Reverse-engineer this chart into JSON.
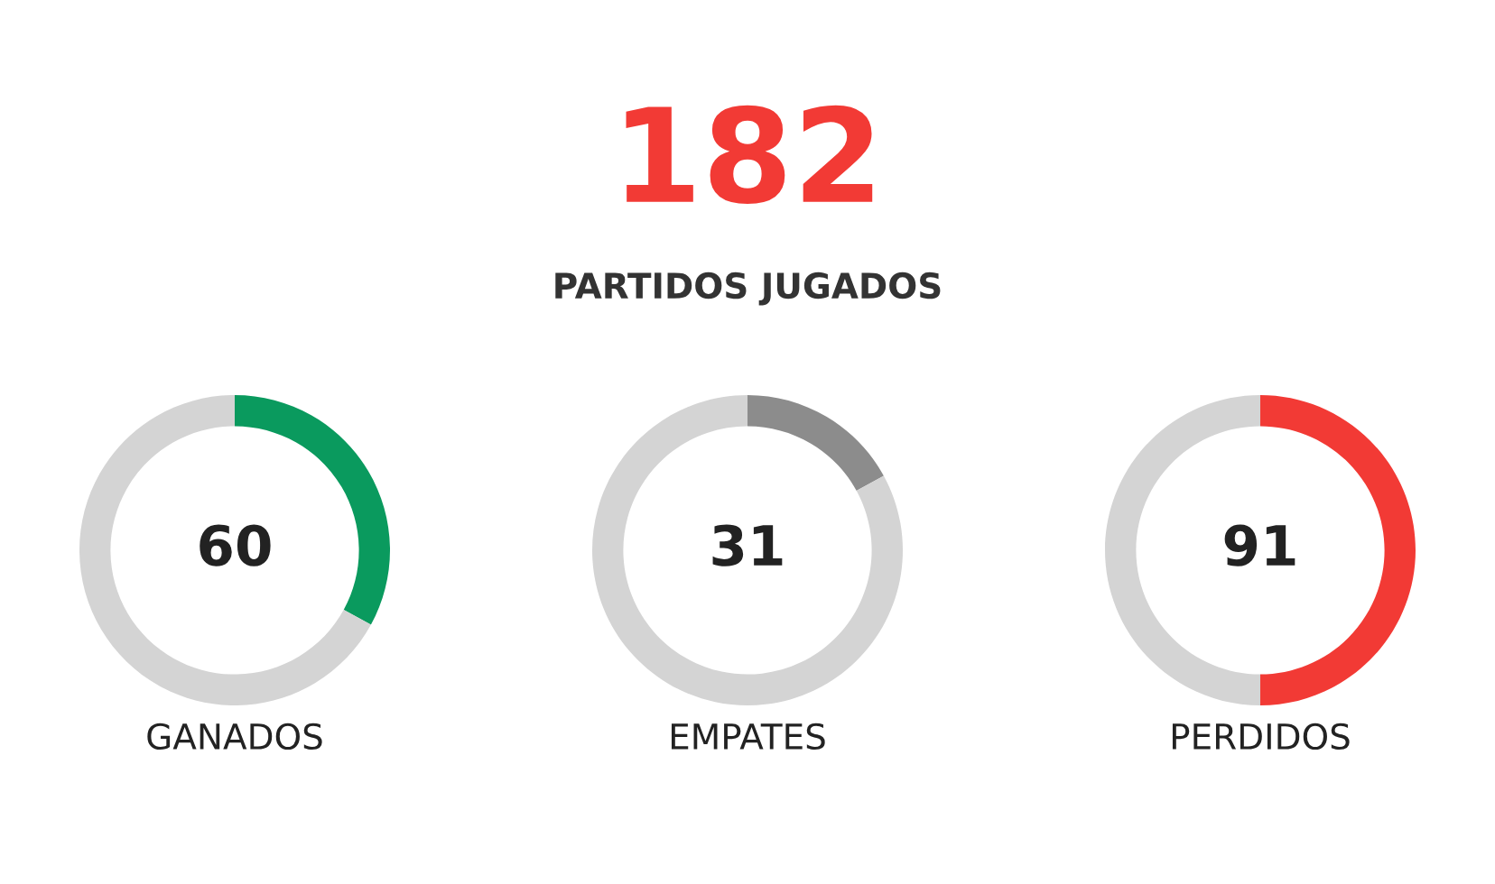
{
  "chart_data": [
    {
      "type": "other",
      "title": "182",
      "subtitle": "PARTIDOS JUGADOS",
      "color": "#f23a35"
    },
    {
      "type": "donut",
      "title": "GANADOS",
      "categories": [
        null,
        null
      ],
      "values": [
        60,
        122
      ],
      "colors": [
        "#0a9a5e",
        "#d4d4d4"
      ],
      "value_labels": [
        "60",
        null
      ]
    },
    {
      "type": "donut",
      "title": "EMPATES",
      "categories": [
        null,
        null
      ],
      "values": [
        31,
        151
      ],
      "colors": [
        "#8c8c8c",
        "#d4d4d4"
      ],
      "value_labels": [
        "31",
        null
      ]
    },
    {
      "type": "donut",
      "title": "PERDIDOS",
      "categories": [
        null,
        null
      ],
      "values": [
        91,
        91
      ],
      "colors": [
        "#f23a35",
        "#d4d4d4"
      ],
      "value_labels": [
        "91",
        null
      ]
    }
  ]
}
